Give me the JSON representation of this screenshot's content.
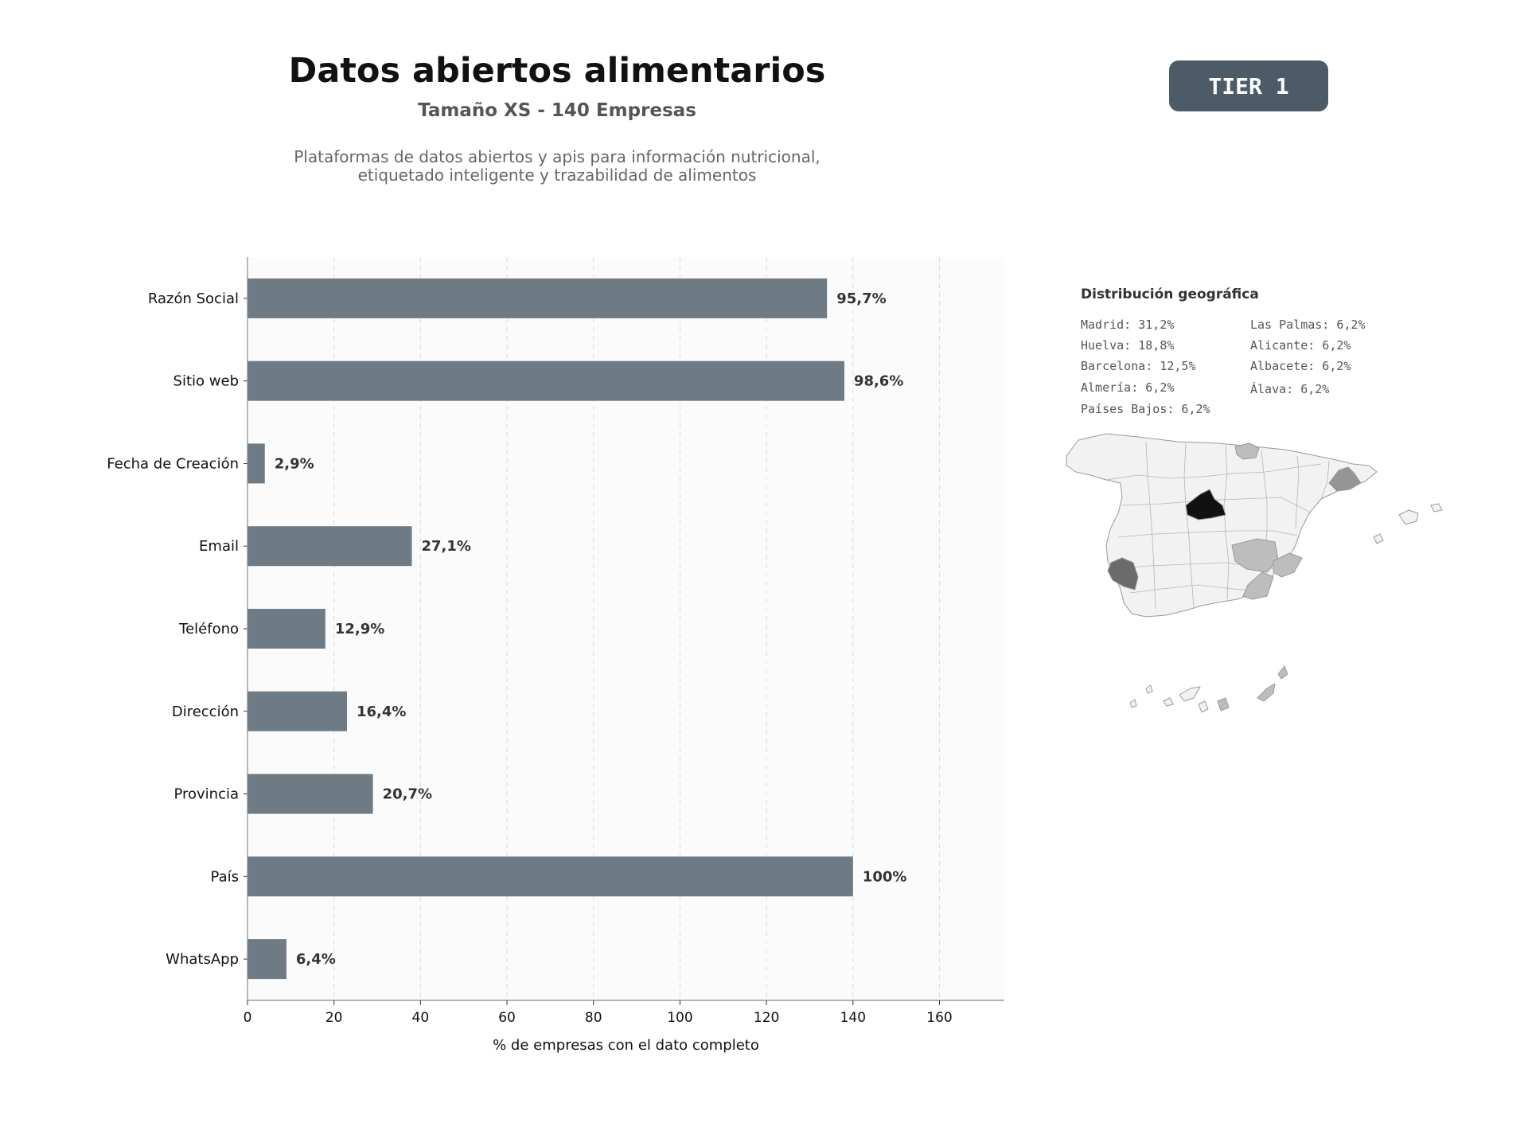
{
  "header": {
    "title": "Datos abiertos alimentarios",
    "subtitle": "Tamaño XS - 140 Empresas",
    "description_lines": [
      "Plataformas de datos abiertos y apis para información nutricional,",
      "etiquetado inteligente y trazabilidad de alimentos"
    ],
    "tier_badge": "TIER 1"
  },
  "colors": {
    "bar": "#6e7a84",
    "badge": "#4d5b69",
    "plot_background": "#fbfbfb",
    "madrid": "#111111",
    "huelva": "#6b6b6b",
    "barcelona": "#959595",
    "other_highlight": "#bdbdbd",
    "base_region": "#f2f2f2"
  },
  "chart_data": {
    "type": "bar",
    "orientation": "horizontal",
    "categories": [
      "Razón Social",
      "Sitio web",
      "Fecha de Creación",
      "Email",
      "Teléfono",
      "Dirección",
      "Provincia",
      "País",
      "WhatsApp"
    ],
    "values": [
      134,
      138,
      4,
      38,
      18,
      23,
      29,
      140,
      9
    ],
    "data_labels": [
      "95,7%",
      "98,6%",
      "2,9%",
      "27,1%",
      "12,9%",
      "16,4%",
      "20,7%",
      "100%",
      "6,4%"
    ],
    "xlabel": "% de empresas con el dato completo",
    "ylabel": "",
    "xlim": [
      0,
      175
    ],
    "xticks": [
      0,
      20,
      40,
      60,
      80,
      100,
      120,
      140,
      160
    ],
    "grid": "vertical dashed"
  },
  "geo": {
    "title": "Distribución geográfica",
    "items": [
      "Madrid: 31,2%",
      "Huelva: 18,8%",
      "Barcelona: 12,5%",
      "Almería: 6,2%",
      "Países Bajos: 6,2%",
      "Las Palmas: 6,2%",
      "Alicante: 6,2%",
      "Albacete: 6,2%",
      "Álava: 6,2%"
    ]
  }
}
